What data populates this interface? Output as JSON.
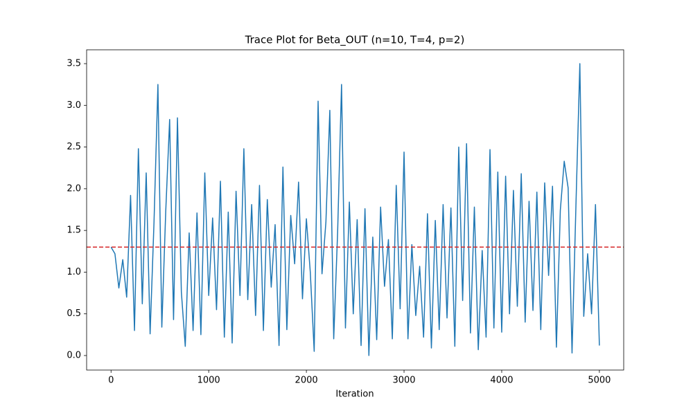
{
  "chart_data": {
    "type": "line",
    "title": "Trace Plot for Beta_OUT (n=10, T=4, p=2)",
    "xlabel": "Iteration",
    "x": [
      0,
      40,
      80,
      120,
      160,
      200,
      240,
      280,
      320,
      360,
      400,
      440,
      480,
      520,
      560,
      600,
      640,
      680,
      720,
      760,
      800,
      840,
      880,
      920,
      960,
      1000,
      1040,
      1080,
      1120,
      1160,
      1200,
      1240,
      1280,
      1320,
      1360,
      1400,
      1440,
      1480,
      1520,
      1560,
      1600,
      1640,
      1680,
      1720,
      1760,
      1800,
      1840,
      1880,
      1920,
      1960,
      2000,
      2040,
      2080,
      2120,
      2160,
      2200,
      2240,
      2280,
      2320,
      2360,
      2400,
      2440,
      2480,
      2520,
      2560,
      2600,
      2640,
      2680,
      2720,
      2760,
      2800,
      2840,
      2880,
      2920,
      2960,
      3000,
      3040,
      3080,
      3120,
      3160,
      3200,
      3240,
      3280,
      3320,
      3360,
      3400,
      3440,
      3480,
      3520,
      3560,
      3600,
      3640,
      3680,
      3720,
      3760,
      3800,
      3840,
      3880,
      3920,
      3960,
      4000,
      4040,
      4080,
      4120,
      4160,
      4200,
      4240,
      4280,
      4320,
      4360,
      4400,
      4440,
      4480,
      4520,
      4560,
      4600,
      4640,
      4680,
      4720,
      4760,
      4800,
      4840,
      4880,
      4920,
      4960,
      5000
    ],
    "values": [
      1.3,
      1.22,
      0.81,
      1.15,
      0.7,
      1.92,
      0.3,
      2.48,
      0.62,
      2.19,
      0.26,
      1.6,
      3.25,
      0.34,
      1.73,
      2.83,
      0.43,
      2.85,
      0.76,
      0.11,
      1.47,
      0.3,
      1.71,
      0.25,
      2.19,
      0.72,
      1.65,
      0.55,
      2.09,
      0.22,
      1.72,
      0.15,
      1.97,
      0.72,
      2.48,
      0.67,
      1.81,
      0.48,
      2.04,
      0.3,
      1.87,
      0.82,
      1.57,
      0.12,
      2.26,
      0.31,
      1.68,
      1.1,
      2.08,
      0.68,
      1.64,
      1.0,
      0.05,
      3.05,
      0.98,
      1.6,
      2.94,
      0.2,
      1.48,
      3.25,
      0.33,
      1.84,
      0.5,
      1.63,
      0.12,
      1.76,
      0.0,
      1.42,
      0.19,
      1.78,
      0.83,
      1.39,
      0.2,
      2.04,
      0.56,
      2.44,
      0.2,
      1.33,
      0.48,
      1.07,
      0.22,
      1.7,
      0.09,
      1.62,
      0.31,
      1.81,
      0.45,
      1.77,
      0.11,
      2.5,
      0.66,
      2.54,
      0.27,
      1.78,
      0.07,
      1.26,
      0.22,
      2.47,
      0.33,
      2.2,
      0.28,
      2.15,
      0.5,
      1.98,
      0.59,
      2.18,
      0.4,
      1.85,
      0.54,
      1.96,
      0.31,
      2.07,
      0.96,
      2.03,
      0.1,
      1.74,
      2.33,
      2.01,
      0.03,
      1.8,
      3.5,
      0.47,
      1.22,
      0.5,
      1.81,
      0.12
    ],
    "color": "#1f77b4",
    "reference_line": {
      "y": 1.3,
      "color": "#d62728",
      "style": "dashed"
    },
    "xlim": [
      -250,
      5249
    ],
    "ylim": [
      -0.174,
      3.666
    ],
    "xticks": [
      0,
      1000,
      2000,
      3000,
      4000,
      5000
    ],
    "yticks": [
      {
        "value": 0,
        "label": "0.0"
      },
      0.5,
      {
        "value": 1,
        "label": "1.0"
      },
      1.5,
      {
        "value": 2,
        "label": "2.0"
      },
      2.5,
      {
        "value": 3,
        "label": "3.0"
      },
      3.5
    ]
  }
}
